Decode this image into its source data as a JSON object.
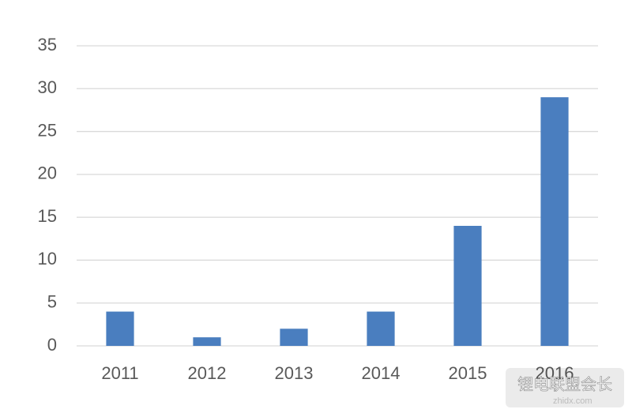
{
  "chart_data": {
    "type": "bar",
    "categories": [
      "2011",
      "2012",
      "2013",
      "2014",
      "2015",
      "2016"
    ],
    "values": [
      4,
      1,
      2,
      4,
      14,
      29
    ],
    "color": "#4a7ebf",
    "ylim": [
      0,
      35
    ],
    "yticks": [
      0,
      5,
      10,
      15,
      20,
      25,
      30,
      35
    ],
    "grid": true
  },
  "watermark": {
    "name": "锂电联盟会长",
    "site": "zhidx.com"
  }
}
